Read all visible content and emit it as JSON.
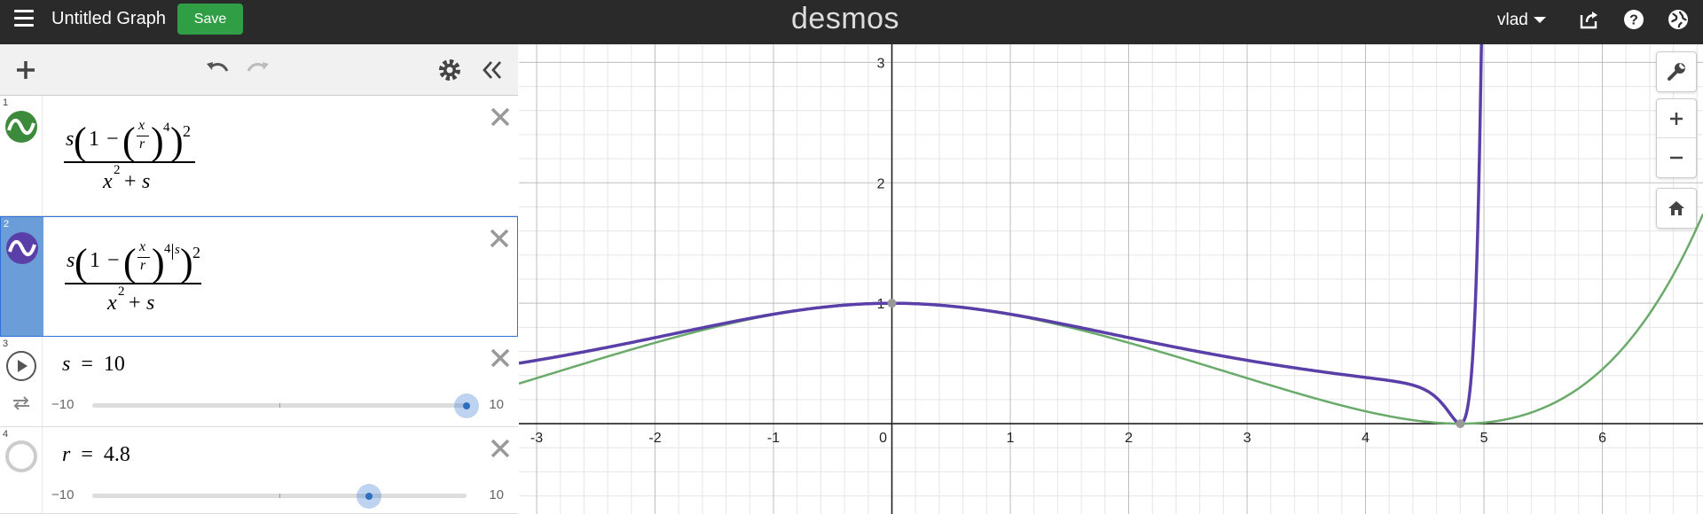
{
  "topbar": {
    "title": "Untitled Graph",
    "save_label": "Save",
    "logo": "desmos",
    "user": "vlad",
    "icons": [
      "menu-icon",
      "share-icon",
      "help-icon",
      "globe-icon"
    ]
  },
  "colors": {
    "green_curve": "#6aaa6a",
    "purple_curve": "#5b3fa8",
    "selection": "#6b9ed9",
    "save_button": "#2f9e44",
    "topbar": "#2a2a2a"
  },
  "expressions": [
    {
      "number": "1",
      "color": "green",
      "icon": "sine-wave-icon",
      "numer_s": "s",
      "one": "1",
      "minus": "−",
      "x": "x",
      "r": "r",
      "inner_exp": "4",
      "outer_exp": "2",
      "den_x": "x",
      "den_exp": "2",
      "den_plus": "+",
      "den_s": "s"
    },
    {
      "number": "2",
      "color": "purple",
      "icon": "sine-wave-icon",
      "numer_s": "s",
      "one": "1",
      "minus": "−",
      "x": "x",
      "r": "r",
      "inner_exp": "4",
      "inner_exp_extra": "s",
      "outer_exp": "2",
      "den_x": "x",
      "den_exp": "2",
      "den_plus": "+",
      "den_s": "s",
      "selected": true
    },
    {
      "number": "3",
      "var": "s",
      "eq": "=",
      "value": "10",
      "min": "−10",
      "max": "10",
      "fraction": 1.0,
      "icon": "play-icon"
    },
    {
      "number": "4",
      "var": "r",
      "eq": "=",
      "value": "4.8",
      "min": "−10",
      "max": "10",
      "fraction": 0.74,
      "icon": "hidden-circle-icon"
    }
  ],
  "graph": {
    "x_ticks": [
      "-3",
      "-2",
      "-1",
      "0",
      "1",
      "2",
      "3",
      "4",
      "5",
      "6"
    ],
    "y_ticks": [
      "1",
      "2",
      "3"
    ],
    "xlim": [
      -3.15,
      6.85
    ],
    "ylim": [
      -0.75,
      3.15
    ],
    "grid": true,
    "controls": [
      "wrench-icon",
      "zoom-in-icon",
      "zoom-out-icon",
      "home-icon"
    ]
  }
}
